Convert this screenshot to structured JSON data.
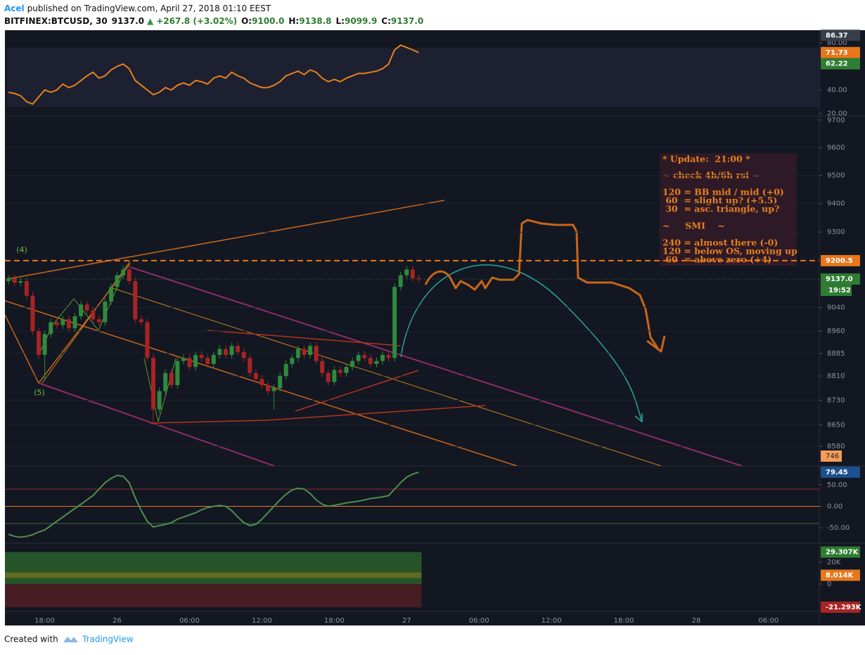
{
  "header": {
    "author": "Acel",
    "published": "published on TradingView.com, April 27, 2018 01:10 EEST",
    "symbol": "BITFINEX:BTCUSD, 30",
    "last": "9137.0",
    "arrow": "▲",
    "change": "+267.8 (+3.02%)",
    "open_label": "O:",
    "open": "9100.0",
    "high_label": "H:",
    "high": "9138.8",
    "low_label": "L:",
    "low": "9099.9",
    "close_label": "C:",
    "close": "9137.0"
  },
  "chart_data": [
    {
      "type": "candlestick",
      "up_color": "#2f8a3c",
      "down_color": "#a82424",
      "log": true,
      "grid": true,
      "ylim": [
        8517,
        9715
      ],
      "xlim": [
        -0.6,
        134.4
      ],
      "yticks": [
        9700,
        9600,
        9500,
        9400,
        9300,
        9040,
        8960,
        8885,
        8810,
        8730,
        8650,
        8580
      ],
      "xticks": [
        {
          "value": 6,
          "label": "18:00"
        },
        {
          "value": 18,
          "label": "26"
        },
        {
          "value": 30,
          "label": "06:00"
        },
        {
          "value": 42,
          "label": "12:00"
        },
        {
          "value": 54,
          "label": "18:00"
        },
        {
          "value": 66,
          "label": "27"
        },
        {
          "value": 78,
          "label": "06:00"
        },
        {
          "value": 90,
          "label": "12:00"
        },
        {
          "value": 102,
          "label": "18:00"
        },
        {
          "value": 114,
          "label": "28"
        },
        {
          "value": 126,
          "label": "06:00"
        }
      ],
      "open": [
        9130,
        9140,
        9125,
        9130,
        9080,
        8960,
        8880,
        8950,
        8990,
        8980,
        9000,
        8970,
        9010,
        9050,
        9030,
        9000,
        8990,
        9060,
        9110,
        9150,
        9170,
        9130,
        9000,
        8990,
        8870,
        8700,
        8760,
        8820,
        8780,
        8860,
        8870,
        8840,
        8880,
        8870,
        8850,
        8880,
        8900,
        8880,
        8910,
        8890,
        8870,
        8820,
        8800,
        8780,
        8760,
        8770,
        8810,
        8850,
        8870,
        8900,
        8880,
        8910,
        8860,
        8820,
        8790,
        8830,
        8820,
        8840,
        8860,
        8880,
        8870,
        8850,
        8860,
        8880,
        8870,
        9110,
        9150,
        9170,
        9140
      ],
      "high": [
        9150,
        9152,
        9142,
        9142,
        9092,
        8972,
        8962,
        9002,
        9002,
        9012,
        9012,
        9022,
        9062,
        9062,
        9042,
        9012,
        9072,
        9122,
        9162,
        9185,
        9182,
        9142,
        9012,
        9002,
        8882,
        8772,
        8832,
        8832,
        8872,
        8882,
        8882,
        8892,
        8892,
        8882,
        8892,
        8912,
        8912,
        8922,
        8922,
        8902,
        8882,
        8832,
        8812,
        8792,
        8782,
        8822,
        8862,
        8882,
        8912,
        8912,
        8922,
        8922,
        8872,
        8832,
        8842,
        8842,
        8852,
        8872,
        8892,
        8892,
        8882,
        8872,
        8892,
        8892,
        9122,
        9162,
        9182,
        9182,
        9152
      ],
      "low": [
        9118,
        9113,
        9113,
        9068,
        8948,
        8868,
        8795,
        8938,
        8968,
        8968,
        8958,
        8958,
        8998,
        9018,
        8988,
        8978,
        8978,
        9048,
        9098,
        9138,
        9118,
        8988,
        8978,
        8858,
        8660,
        8688,
        8748,
        8768,
        8768,
        8848,
        8828,
        8828,
        8858,
        8838,
        8838,
        8868,
        8868,
        8868,
        8878,
        8858,
        8808,
        8788,
        8768,
        8748,
        8700,
        8758,
        8798,
        8838,
        8858,
        8868,
        8868,
        8848,
        8808,
        8778,
        8778,
        8808,
        8808,
        8828,
        8848,
        8858,
        8838,
        8838,
        8848,
        8858,
        8858,
        9098,
        9138,
        9128,
        9125
      ],
      "close": [
        9140,
        9125,
        9130,
        9080,
        8960,
        8880,
        8950,
        8990,
        8980,
        9000,
        8970,
        9010,
        9050,
        9030,
        9000,
        8990,
        9060,
        9110,
        9150,
        9170,
        9130,
        9000,
        8990,
        8870,
        8700,
        8760,
        8820,
        8780,
        8860,
        8870,
        8840,
        8880,
        8870,
        8850,
        8880,
        8900,
        8880,
        8910,
        8890,
        8870,
        8820,
        8800,
        8780,
        8760,
        8770,
        8810,
        8850,
        8870,
        8900,
        8880,
        8910,
        8860,
        8820,
        8790,
        8830,
        8820,
        8840,
        8860,
        8880,
        8870,
        8850,
        8860,
        8880,
        8870,
        9110,
        9150,
        9170,
        9140,
        9137
      ],
      "price_labels": [
        {
          "value": 9200.5,
          "label": "9200.5",
          "color": "#e8771c",
          "line_style": "dashed"
        },
        {
          "value": 9137,
          "label": "9137.0",
          "color": "#2f7d32",
          "line_style": "dotted"
        }
      ],
      "countdown": "19:52",
      "volume_label": "746",
      "wave_labels": [
        "(4)",
        "(5)"
      ]
    },
    {
      "type": "line",
      "color": "#e8801c",
      "ylim": [
        17.9,
        90.7
      ],
      "yticks": [
        {
          "value": 80,
          "label": "80.00"
        },
        {
          "value": 40,
          "label": "40.00"
        },
        {
          "value": 20,
          "label": "20.00"
        }
      ],
      "values": [
        38,
        37,
        35,
        30,
        28,
        34,
        40,
        38,
        40,
        45,
        42,
        44,
        48,
        52,
        55,
        50,
        52,
        57,
        60,
        62,
        58,
        48,
        44,
        40,
        36,
        38,
        42,
        40,
        44,
        46,
        44,
        48,
        47,
        45,
        50,
        52,
        50,
        55,
        52,
        50,
        46,
        44,
        42,
        42,
        44,
        47,
        52,
        54,
        56,
        53,
        57,
        55,
        50,
        47,
        49,
        47,
        50,
        52,
        54,
        54,
        55,
        56,
        58,
        62,
        74,
        78,
        76,
        74,
        71.73
      ],
      "price_labels": [
        {
          "value": 86.37,
          "label": "86.37",
          "color": "#3a3e4a"
        },
        {
          "value": 71.73,
          "label": "71.73",
          "color": "#e8771c"
        },
        {
          "value": 62.22,
          "label": "62.22",
          "color": "#2f7d32"
        }
      ]
    },
    {
      "type": "line",
      "color": "#4f8f4c",
      "ylim": [
        -86,
        94
      ],
      "yticks": [
        {
          "value": 50,
          "label": "50.00"
        },
        {
          "value": 0,
          "label": "0.00"
        },
        {
          "value": -50,
          "label": "-50.00"
        }
      ],
      "levels": [
        40,
        0,
        -40
      ],
      "values": [
        -65,
        -70,
        -72,
        -70,
        -66,
        -60,
        -55,
        -45,
        -35,
        -25,
        -15,
        -5,
        5,
        15,
        25,
        40,
        55,
        65,
        72,
        70,
        55,
        20,
        -10,
        -35,
        -48,
        -45,
        -42,
        -38,
        -30,
        -25,
        -20,
        -15,
        -8,
        -3,
        0,
        2,
        0,
        -10,
        -25,
        -38,
        -45,
        -42,
        -30,
        -15,
        0,
        15,
        28,
        38,
        42,
        40,
        30,
        15,
        5,
        0,
        2,
        5,
        8,
        10,
        12,
        15,
        18,
        20,
        22,
        25,
        40,
        55,
        68,
        75,
        79.45
      ],
      "price_labels": [
        {
          "value": 79.45,
          "label": "79.45",
          "color": "#1e4f8f"
        }
      ]
    },
    {
      "type": "band",
      "ylim": [
        -25200,
        37400
      ],
      "yticks": [
        {
          "value": 20000,
          "label": "20K"
        },
        0
      ],
      "price_labels": [
        {
          "value": 29307,
          "label": "29.307K",
          "color": "#2f7d32"
        },
        {
          "value": 8014,
          "label": "8.014K",
          "color": "#e8771c"
        },
        {
          "value": -21293,
          "label": "-21.293K",
          "color": "#a82424"
        }
      ]
    }
  ],
  "note": [
    "* Update:  21:00 *",
    "~ check 4h/6h rsi ~",
    "120 = BB mid / mid (+0)",
    " 60  = slight up? (+5.5)",
    " 30  = asc. triangle, up?",
    "~     SMI    ~",
    "240 = almost there (-0)",
    "120 = below OS, moving up",
    " 60  = above zero (+4)"
  ],
  "footer": {
    "created": "Created with",
    "brand": "TradingView"
  }
}
